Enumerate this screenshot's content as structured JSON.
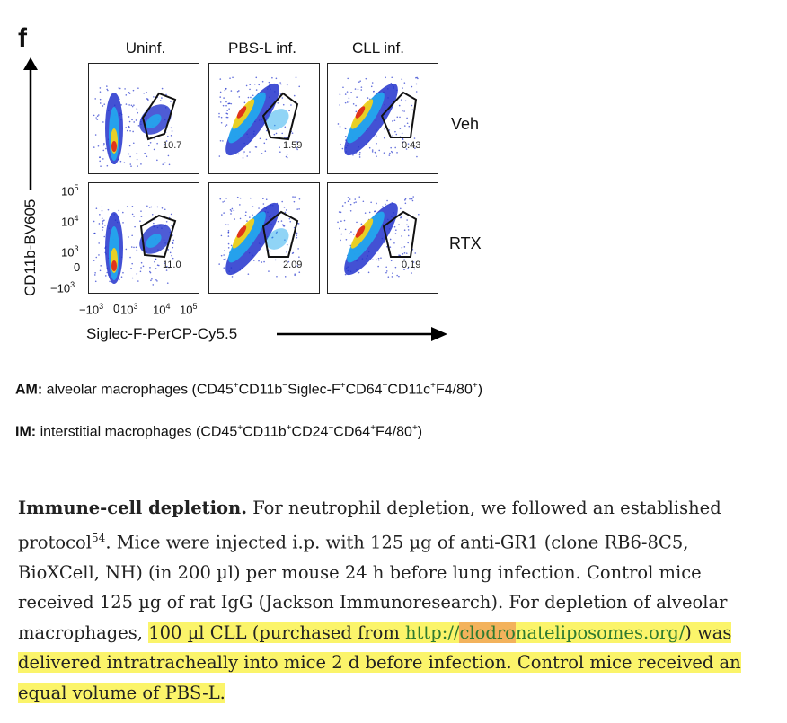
{
  "figure": {
    "panel_label": "f",
    "columns": [
      "Uninf.",
      "PBS-L inf.",
      "CLL inf."
    ],
    "rows": [
      "Veh",
      "RTX"
    ],
    "gate_percentages": [
      [
        "10.7",
        "1.59",
        "0.43"
      ],
      [
        "11.0",
        "2.09",
        "0.19"
      ]
    ],
    "y_axis_title": "CD11b-BV605",
    "x_axis_title": "Siglec-F-PerCP-Cy5.5",
    "y_ticks": [
      "10^5",
      "10^4",
      "10^3",
      "0",
      "−10^3"
    ],
    "x_ticks": [
      "−10^3",
      "0",
      "10^3",
      "10^4",
      "10^5"
    ],
    "colors": {
      "density_low": "#2233cc",
      "density_mid": "#22aaee",
      "density_high": "#f2d21a",
      "density_peak": "#e0341a",
      "gate": "#111111"
    }
  },
  "definitions": {
    "am_label": "AM:",
    "am_text": "alveolar macrophages",
    "am_markers": [
      "CD45",
      "+",
      "CD11b",
      "−",
      "Siglec-F",
      "+",
      "CD64",
      "+",
      "CD11c",
      "+",
      "F4/80",
      "+"
    ],
    "im_label": "IM:",
    "im_text": "interstitial macrophages",
    "im_markers": [
      "CD45",
      "+",
      "CD11b",
      "+",
      "CD24",
      "−",
      "CD64",
      "+",
      "F4/80",
      "+"
    ]
  },
  "methods": {
    "heading": "Immune-cell depletion.",
    "p1": " For neutrophil depletion, we followed an established protocol",
    "ref": "54",
    "p2": ". Mice were injected i.p. with 125 µg of anti-GR1 (clone RB6-8C5, BioXCell, NH) (in 200 µl) per mouse 24 h before lung infection. Control mice received 125 µg of rat IgG (Jackson Immunoresearch). For depletion of alveolar macrophages, ",
    "hl1": "100 µl CLL (purchased from ",
    "link_a": "http://",
    "link_b": "clodro",
    "link_c": "nateliposomes.org/",
    "hl2": ") was delivered intratracheally into mice 2 d before infection. Control mice received an equal volume of PBS-L."
  }
}
